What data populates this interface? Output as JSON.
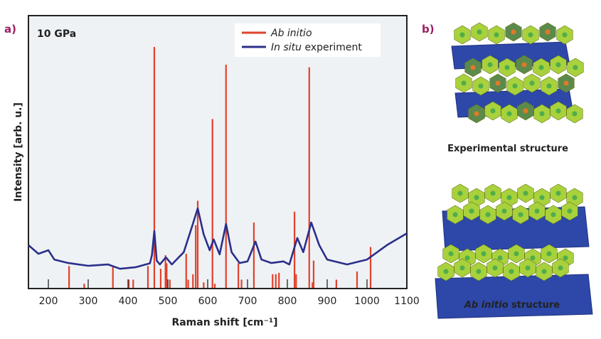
{
  "panel_a_label": "a)",
  "panel_b_label": "b)",
  "colors": {
    "ab_initio": "#e2412b",
    "experiment": "#2b2f8a",
    "plot_bg": "#eff2f5",
    "panel_label": "#9b1f63"
  },
  "chart_data": {
    "type": "line",
    "annotation": "10 GPa",
    "xlabel": "Raman shift [cm⁻¹]",
    "ylabel": "Intensity [arb. u.]",
    "xlim": [
      150,
      1100
    ],
    "ylim": [
      0,
      1
    ],
    "xticks": [
      200,
      300,
      400,
      500,
      600,
      700,
      800,
      900,
      1000,
      1100
    ],
    "grid": false,
    "legend_position": "top-right",
    "series": [
      {
        "name": "Ab initio",
        "name_italic": "Ab initio",
        "name_rest": "",
        "kind": "stick",
        "x": [
          252,
          290,
          362,
          402,
          413,
          450,
          466,
          482,
          494,
          497,
          505,
          546,
          551,
          563,
          570,
          575,
          590,
          612,
          618,
          646,
          677,
          685,
          716,
          763,
          771,
          779,
          818,
          822,
          855,
          863,
          866,
          923,
          975,
          1009
        ],
        "values": [
          0.08,
          0.015,
          0.08,
          0.03,
          0.03,
          0.08,
          0.885,
          0.07,
          0.12,
          0.09,
          0.03,
          0.125,
          0.03,
          0.05,
          0.23,
          0.32,
          0.02,
          0.62,
          0.015,
          0.82,
          0.09,
          0.03,
          0.24,
          0.05,
          0.05,
          0.055,
          0.28,
          0.05,
          0.81,
          0.02,
          0.1,
          0.03,
          0.06,
          0.15
        ]
      },
      {
        "name": "In situ experiment",
        "name_italic": "In situ",
        "name_rest": " experiment",
        "kind": "line",
        "x": [
          150,
          175,
          200,
          215,
          250,
          300,
          350,
          380,
          420,
          455,
          460,
          466,
          472,
          480,
          495,
          510,
          540,
          560,
          575,
          590,
          605,
          615,
          630,
          646,
          660,
          680,
          700,
          720,
          735,
          760,
          790,
          805,
          825,
          840,
          860,
          880,
          900,
          950,
          1000,
          1050,
          1100
        ],
        "values": [
          0.157,
          0.125,
          0.138,
          0.104,
          0.091,
          0.081,
          0.086,
          0.07,
          0.076,
          0.09,
          0.12,
          0.209,
          0.1,
          0.086,
          0.112,
          0.086,
          0.131,
          0.222,
          0.292,
          0.196,
          0.138,
          0.178,
          0.123,
          0.235,
          0.131,
          0.091,
          0.097,
          0.17,
          0.104,
          0.091,
          0.097,
          0.086,
          0.183,
          0.131,
          0.24,
          0.157,
          0.104,
          0.086,
          0.104,
          0.157,
          0.2
        ]
      }
    ]
  },
  "structures": {
    "experimental_caption": "Experimental structure",
    "ab_initio_caption_italic": "Ab initio",
    "ab_initio_caption_rest": " structure"
  }
}
